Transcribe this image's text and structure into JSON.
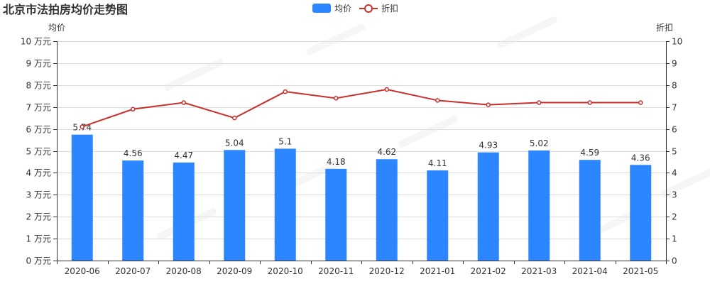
{
  "chart_data": {
    "type": "bar",
    "title": "北京市法拍房均价走势图",
    "categories": [
      "2020-06",
      "2020-07",
      "2020-08",
      "2020-09",
      "2020-10",
      "2020-11",
      "2020-12",
      "2021-01",
      "2021-02",
      "2021-03",
      "2021-04",
      "2021-05"
    ],
    "series": [
      {
        "name": "均价",
        "type": "bar",
        "axis": "left",
        "color": "#2c86ff",
        "values": [
          5.74,
          4.56,
          4.47,
          5.04,
          5.1,
          4.18,
          4.62,
          4.11,
          4.93,
          5.02,
          4.59,
          4.36
        ]
      },
      {
        "name": "折扣",
        "type": "line",
        "axis": "right",
        "color": "#c9302c",
        "values": [
          6.1,
          6.9,
          7.2,
          6.5,
          7.7,
          7.4,
          7.8,
          7.3,
          7.1,
          7.2,
          7.2,
          7.2
        ]
      }
    ],
    "y_left": {
      "label": "均价",
      "ylim": [
        0,
        10
      ],
      "ticks": [
        "0 万元",
        "1 万元",
        "2 万元",
        "3 万元",
        "4 万元",
        "5 万元",
        "6 万元",
        "7 万元",
        "8 万元",
        "9 万元",
        "10 万元"
      ]
    },
    "y_right": {
      "label": "折扣",
      "ylim": [
        0,
        10
      ],
      "ticks": [
        "0",
        "1",
        "2",
        "3",
        "4",
        "5",
        "6",
        "7",
        "8",
        "9",
        "10"
      ]
    },
    "grid": true,
    "legend_position": "top-center"
  }
}
